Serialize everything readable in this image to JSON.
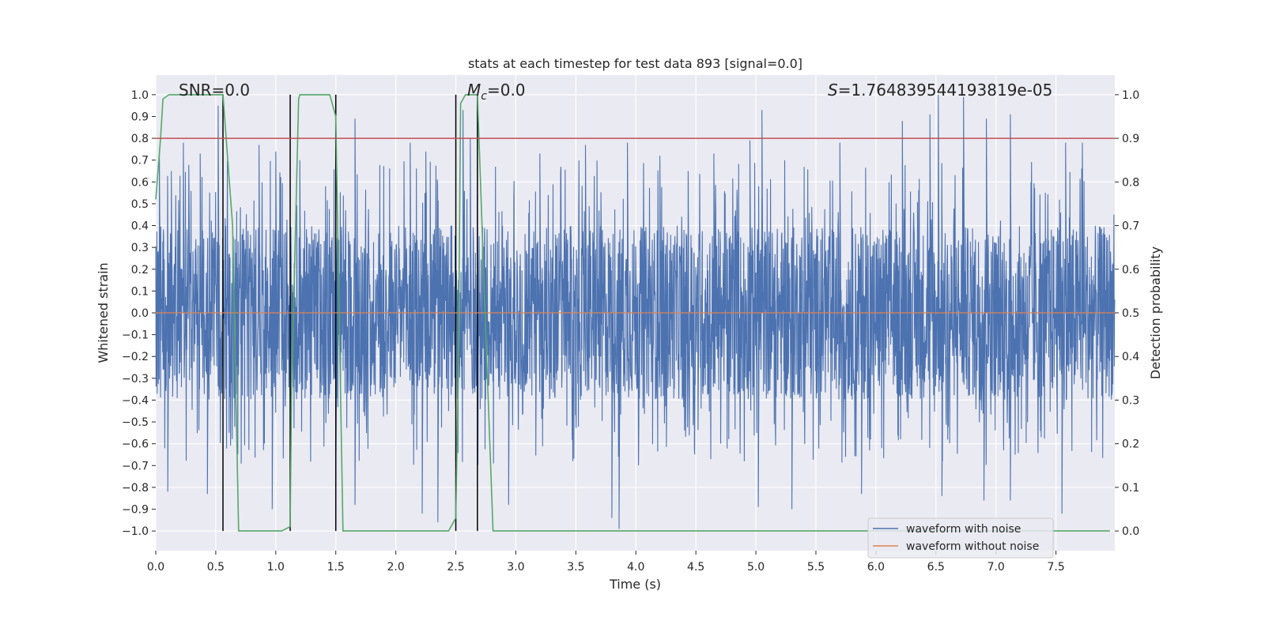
{
  "chart_data": {
    "type": "line",
    "title": "stats at each timestep for test data 893 [signal=0.0]",
    "xlabel": "Time (s)",
    "ylabel": "Whitened strain",
    "y2label": "Detection probability",
    "xlim": [
      0,
      7.99
    ],
    "ylim": [
      -1.09,
      1.09
    ],
    "y2lim": [
      -0.045,
      1.045
    ],
    "x_ticks": [
      0.0,
      0.5,
      1.0,
      1.5,
      2.0,
      2.5,
      3.0,
      3.5,
      4.0,
      4.5,
      5.0,
      5.5,
      6.0,
      6.5,
      7.0,
      7.5
    ],
    "x_tick_labels": [
      "0.0",
      "0.5",
      "1.0",
      "1.5",
      "2.0",
      "2.5",
      "3.0",
      "3.5",
      "4.0",
      "4.5",
      "5.0",
      "5.5",
      "6.0",
      "6.5",
      "7.0",
      "7.5"
    ],
    "y_ticks": [
      1.0,
      0.9,
      0.8,
      0.7,
      0.6,
      0.5,
      0.4,
      0.3,
      0.2,
      0.1,
      0.0,
      -0.1,
      -0.2,
      -0.3,
      -0.4,
      -0.5,
      -0.6,
      -0.7,
      -0.8,
      -0.9,
      -1.0
    ],
    "y_tick_labels": [
      "1.0",
      "0.9",
      "0.8",
      "0.7",
      "0.6",
      "0.5",
      "0.4",
      "0.3",
      "0.2",
      "0.1",
      "0.0",
      "−0.1",
      "−0.2",
      "−0.3",
      "−0.4",
      "−0.5",
      "−0.6",
      "−0.7",
      "−0.8",
      "−0.9",
      "−1.0"
    ],
    "y2_ticks": [
      1.0,
      0.9,
      0.8,
      0.7,
      0.6,
      0.5,
      0.4,
      0.3,
      0.2,
      0.1,
      0.0
    ],
    "y2_tick_labels": [
      "1.0",
      "0.9",
      "0.8",
      "0.7",
      "0.6",
      "0.5",
      "0.4",
      "0.3",
      "0.2",
      "0.1",
      "0.0"
    ],
    "annotations": {
      "snr": "SNR=0.0",
      "mc_symbol": "M",
      "mc_sub": "c",
      "mc_value": "=0.0",
      "s_symbol": "S",
      "s_value": "=1.764839544193819e-05"
    },
    "threshold": {
      "axis": "y2",
      "value": 0.9,
      "color": "#c44e52"
    },
    "vertical_lines": [
      0.56,
      1.12,
      1.5,
      2.5,
      2.68
    ],
    "series": [
      {
        "name": "waveform with noise",
        "color": "#4c72b0",
        "kind": "noise",
        "envelope": 0.4,
        "peaks": [
          [
            0.03,
            0.72
          ],
          [
            0.13,
            0.65
          ],
          [
            0.23,
            0.78
          ],
          [
            0.37,
            0.73
          ],
          [
            0.52,
            0.95
          ],
          [
            0.86,
            0.77
          ],
          [
            1.0,
            0.74
          ],
          [
            1.2,
            0.7
          ],
          [
            1.66,
            0.89
          ],
          [
            2.12,
            0.78
          ],
          [
            2.25,
            0.74
          ],
          [
            2.56,
            0.93
          ],
          [
            2.62,
            0.8
          ],
          [
            3.2,
            0.73
          ],
          [
            3.58,
            0.77
          ],
          [
            3.93,
            0.78
          ],
          [
            4.2,
            0.72
          ],
          [
            4.65,
            0.73
          ],
          [
            4.95,
            0.79
          ],
          [
            5.05,
            0.93
          ],
          [
            5.7,
            0.78
          ],
          [
            6.22,
            0.88
          ],
          [
            6.45,
            0.91
          ],
          [
            6.52,
            1.0
          ],
          [
            6.73,
            0.99
          ],
          [
            6.92,
            0.89
          ],
          [
            7.12,
            0.91
          ],
          [
            7.58,
            0.78
          ],
          [
            7.72,
            0.78
          ],
          [
            0.1,
            -0.82
          ],
          [
            0.43,
            -0.83
          ],
          [
            0.97,
            -0.9
          ],
          [
            1.66,
            -0.88
          ],
          [
            2.22,
            -0.92
          ],
          [
            2.35,
            -0.96
          ],
          [
            2.94,
            -0.88
          ],
          [
            3.8,
            -0.94
          ],
          [
            3.86,
            -0.99
          ],
          [
            5.02,
            -0.89
          ],
          [
            5.3,
            -0.9
          ],
          [
            5.88,
            -0.83
          ],
          [
            6.55,
            -0.84
          ],
          [
            6.9,
            -0.86
          ],
          [
            7.12,
            -0.86
          ],
          [
            7.55,
            -0.92
          ]
        ]
      },
      {
        "name": "waveform without noise",
        "color": "#dd8452",
        "kind": "flat",
        "value": 0.0
      },
      {
        "name": "detection probability",
        "color": "#55a868",
        "axis": "y2",
        "x": [
          0.0,
          0.04,
          0.06,
          0.11,
          0.16,
          0.56,
          0.64,
          0.69,
          1.05,
          1.12,
          1.13,
          1.19,
          1.2,
          1.45,
          1.5,
          1.52,
          1.56,
          2.44,
          2.5,
          2.52,
          2.54,
          2.58,
          2.68,
          2.75,
          2.81,
          7.95
        ],
        "y": [
          0.76,
          0.9,
          0.99,
          1.0,
          1.0,
          1.0,
          0.7,
          0.0,
          0.0,
          0.01,
          0.3,
          0.99,
          1.0,
          1.0,
          0.95,
          0.62,
          0.0,
          0.0,
          0.03,
          0.35,
          0.98,
          1.0,
          1.0,
          0.45,
          0.0,
          0.0
        ]
      }
    ],
    "legend": {
      "placement": "lower-right",
      "entries": [
        "waveform with noise",
        "waveform without noise"
      ]
    }
  }
}
